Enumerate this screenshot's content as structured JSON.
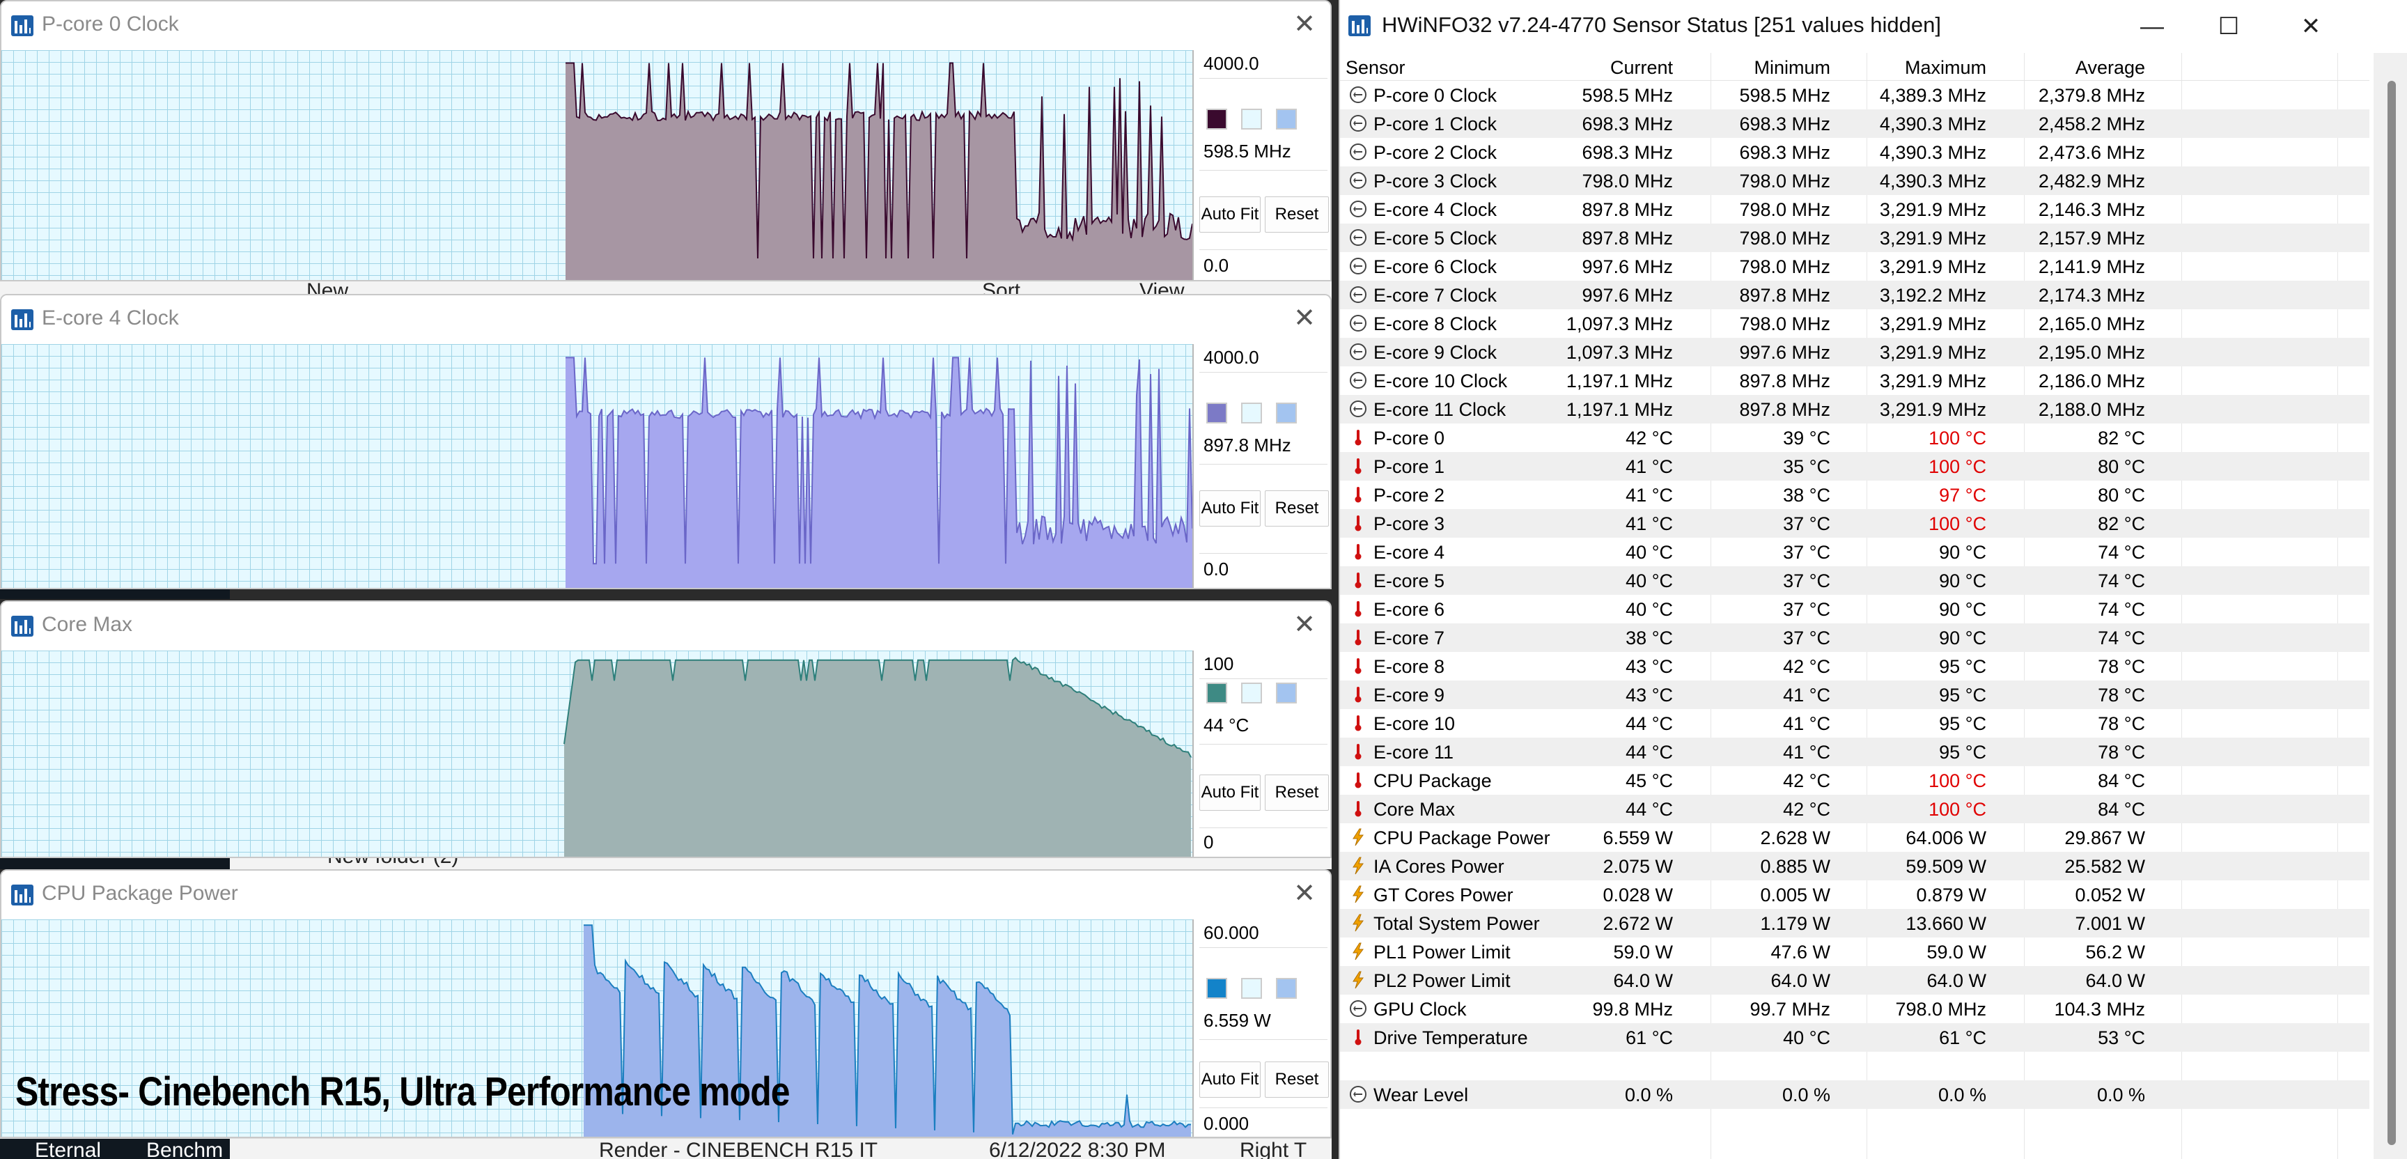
{
  "background": {
    "strip1_text": "New",
    "strip1_items": [
      "Sort",
      "View"
    ],
    "strip3_text": "New folder (2)",
    "strip4_items": [
      "Eternal",
      "Benchm",
      "Render - CINEBENCH R15 IT",
      "6/12/2022 8:30 PM",
      "Right T"
    ]
  },
  "graphs": [
    {
      "title": "P-core 0 Clock",
      "max_label": "4000.0",
      "current_label": "598.5 MHz",
      "min_label": "0.0",
      "line_color": "#3a0a2e",
      "fill_color": "#a796a3",
      "scale_max": 4000,
      "swatch": "#3a0a2e",
      "autofit_label": "Auto Fit",
      "reset_label": "Reset"
    },
    {
      "title": "E-core 4 Clock",
      "max_label": "4000.0",
      "current_label": "897.8 MHz",
      "min_label": "0.0",
      "line_color": "#6a66c8",
      "fill_color": "#a6a7ef",
      "scale_max": 4000,
      "swatch": "#7c7ac6",
      "autofit_label": "Auto Fit",
      "reset_label": "Reset"
    },
    {
      "title": "Core Max",
      "max_label": "100",
      "current_label": "44 °C",
      "min_label": "0",
      "line_color": "#2e7f7a",
      "fill_color": "#9fb3b3",
      "scale_max": 100,
      "swatch": "#3e8a84",
      "autofit_label": "Auto Fit",
      "reset_label": "Reset"
    },
    {
      "title": "CPU Package Power",
      "max_label": "60.000",
      "current_label": "6.559 W",
      "min_label": "0.000",
      "line_color": "#1b7ec0",
      "fill_color": "#9cb4ec",
      "scale_max": 60,
      "swatch": "#1383c9",
      "autofit_label": "Auto Fit",
      "reset_label": "Reset"
    }
  ],
  "caption": "Stress- Cinebench R15, Ultra Performance mode",
  "sensor_window": {
    "title": "HWiNFO32 v7.24-4770 Sensor Status [251 values hidden]",
    "columns": [
      "Sensor",
      "Current",
      "Minimum",
      "Maximum",
      "Average"
    ],
    "rows": [
      {
        "icon": "clock",
        "name": "P-core 0 Clock",
        "cur": "598.5 MHz",
        "min": "598.5 MHz",
        "max": "4,389.3 MHz",
        "avg": "2,379.8 MHz"
      },
      {
        "icon": "clock",
        "name": "P-core 1 Clock",
        "cur": "698.3 MHz",
        "min": "698.3 MHz",
        "max": "4,390.3 MHz",
        "avg": "2,458.2 MHz"
      },
      {
        "icon": "clock",
        "name": "P-core 2 Clock",
        "cur": "698.3 MHz",
        "min": "698.3 MHz",
        "max": "4,390.3 MHz",
        "avg": "2,473.6 MHz"
      },
      {
        "icon": "clock",
        "name": "P-core 3 Clock",
        "cur": "798.0 MHz",
        "min": "798.0 MHz",
        "max": "4,390.3 MHz",
        "avg": "2,482.9 MHz"
      },
      {
        "icon": "clock",
        "name": "E-core 4 Clock",
        "cur": "897.8 MHz",
        "min": "798.0 MHz",
        "max": "3,291.9 MHz",
        "avg": "2,146.3 MHz"
      },
      {
        "icon": "clock",
        "name": "E-core 5 Clock",
        "cur": "897.8 MHz",
        "min": "798.0 MHz",
        "max": "3,291.9 MHz",
        "avg": "2,157.9 MHz"
      },
      {
        "icon": "clock",
        "name": "E-core 6 Clock",
        "cur": "997.6 MHz",
        "min": "798.0 MHz",
        "max": "3,291.9 MHz",
        "avg": "2,141.9 MHz"
      },
      {
        "icon": "clock",
        "name": "E-core 7 Clock",
        "cur": "997.6 MHz",
        "min": "897.8 MHz",
        "max": "3,192.2 MHz",
        "avg": "2,174.3 MHz"
      },
      {
        "icon": "clock",
        "name": "E-core 8 Clock",
        "cur": "1,097.3 MHz",
        "min": "798.0 MHz",
        "max": "3,291.9 MHz",
        "avg": "2,165.0 MHz"
      },
      {
        "icon": "clock",
        "name": "E-core 9 Clock",
        "cur": "1,097.3 MHz",
        "min": "997.6 MHz",
        "max": "3,291.9 MHz",
        "avg": "2,195.0 MHz"
      },
      {
        "icon": "clock",
        "name": "E-core 10 Clock",
        "cur": "1,197.1 MHz",
        "min": "897.8 MHz",
        "max": "3,291.9 MHz",
        "avg": "2,186.0 MHz"
      },
      {
        "icon": "clock",
        "name": "E-core 11 Clock",
        "cur": "1,197.1 MHz",
        "min": "897.8 MHz",
        "max": "3,291.9 MHz",
        "avg": "2,188.0 MHz"
      },
      {
        "icon": "temp",
        "name": "P-core 0",
        "cur": "42 °C",
        "min": "39 °C",
        "max": "100 °C",
        "avg": "82 °C",
        "max_red": true
      },
      {
        "icon": "temp",
        "name": "P-core 1",
        "cur": "41 °C",
        "min": "35 °C",
        "max": "100 °C",
        "avg": "80 °C",
        "max_red": true
      },
      {
        "icon": "temp",
        "name": "P-core 2",
        "cur": "41 °C",
        "min": "38 °C",
        "max": "97 °C",
        "avg": "80 °C",
        "max_red": true
      },
      {
        "icon": "temp",
        "name": "P-core 3",
        "cur": "41 °C",
        "min": "37 °C",
        "max": "100 °C",
        "avg": "82 °C",
        "max_red": true
      },
      {
        "icon": "temp",
        "name": "E-core 4",
        "cur": "40 °C",
        "min": "37 °C",
        "max": "90 °C",
        "avg": "74 °C"
      },
      {
        "icon": "temp",
        "name": "E-core 5",
        "cur": "40 °C",
        "min": "37 °C",
        "max": "90 °C",
        "avg": "74 °C"
      },
      {
        "icon": "temp",
        "name": "E-core 6",
        "cur": "40 °C",
        "min": "37 °C",
        "max": "90 °C",
        "avg": "74 °C"
      },
      {
        "icon": "temp",
        "name": "E-core 7",
        "cur": "38 °C",
        "min": "37 °C",
        "max": "90 °C",
        "avg": "74 °C"
      },
      {
        "icon": "temp",
        "name": "E-core 8",
        "cur": "43 °C",
        "min": "42 °C",
        "max": "95 °C",
        "avg": "78 °C"
      },
      {
        "icon": "temp",
        "name": "E-core 9",
        "cur": "43 °C",
        "min": "41 °C",
        "max": "95 °C",
        "avg": "78 °C"
      },
      {
        "icon": "temp",
        "name": "E-core 10",
        "cur": "44 °C",
        "min": "41 °C",
        "max": "95 °C",
        "avg": "78 °C"
      },
      {
        "icon": "temp",
        "name": "E-core 11",
        "cur": "44 °C",
        "min": "41 °C",
        "max": "95 °C",
        "avg": "78 °C"
      },
      {
        "icon": "temp",
        "name": "CPU Package",
        "cur": "45 °C",
        "min": "42 °C",
        "max": "100 °C",
        "avg": "84 °C",
        "max_red": true
      },
      {
        "icon": "temp",
        "name": "Core Max",
        "cur": "44 °C",
        "min": "42 °C",
        "max": "100 °C",
        "avg": "84 °C",
        "max_red": true
      },
      {
        "icon": "power",
        "name": "CPU Package Power",
        "cur": "6.559 W",
        "min": "2.628 W",
        "max": "64.006 W",
        "avg": "29.867 W"
      },
      {
        "icon": "power",
        "name": "IA Cores Power",
        "cur": "2.075 W",
        "min": "0.885 W",
        "max": "59.509 W",
        "avg": "25.582 W"
      },
      {
        "icon": "power",
        "name": "GT Cores Power",
        "cur": "0.028 W",
        "min": "0.005 W",
        "max": "0.879 W",
        "avg": "0.052 W"
      },
      {
        "icon": "power",
        "name": "Total System Power",
        "cur": "2.672 W",
        "min": "1.179 W",
        "max": "13.660 W",
        "avg": "7.001 W"
      },
      {
        "icon": "power",
        "name": "PL1 Power Limit",
        "cur": "59.0 W",
        "min": "47.6 W",
        "max": "59.0 W",
        "avg": "56.2 W"
      },
      {
        "icon": "power",
        "name": "PL2 Power Limit",
        "cur": "64.0 W",
        "min": "64.0 W",
        "max": "64.0 W",
        "avg": "64.0 W"
      },
      {
        "icon": "clock",
        "name": "GPU Clock",
        "cur": "99.8 MHz",
        "min": "99.7 MHz",
        "max": "798.0 MHz",
        "avg": "104.3 MHz"
      },
      {
        "icon": "temp",
        "name": "Drive Temperature",
        "cur": "61 °C",
        "min": "40 °C",
        "max": "61 °C",
        "avg": "53 °C"
      },
      {
        "icon": "none",
        "name": "",
        "cur": "",
        "min": "",
        "max": "",
        "avg": ""
      },
      {
        "icon": "clock",
        "name": "Wear Level",
        "cur": "0.0 %",
        "min": "0.0 %",
        "max": "0.0 %",
        "avg": "0.0 %"
      }
    ]
  },
  "colors": {
    "plot_bg": "#e6f9ff",
    "grid": "#9fd4e6",
    "alert_red": "#e00000",
    "temp_icon": "#d01010",
    "power_icon": "#f0a000"
  }
}
